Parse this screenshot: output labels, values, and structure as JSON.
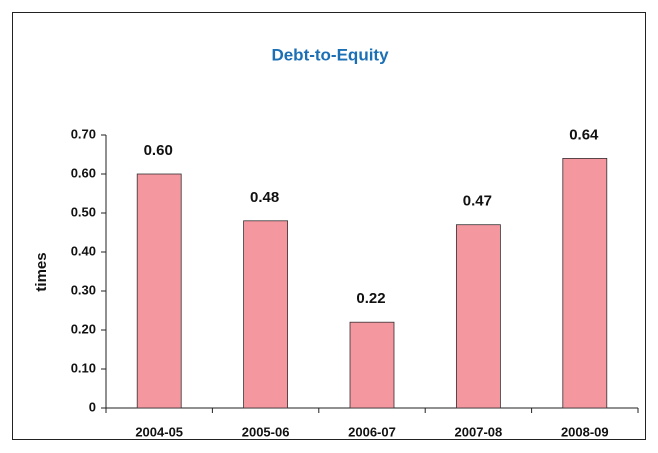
{
  "chart_data": {
    "type": "bar",
    "title": "Debt-to-Equity",
    "y_label": "times",
    "categories": [
      "2004-05",
      "2005-06",
      "2006-07",
      "2007-08",
      "2008-09"
    ],
    "values": [
      0.6,
      0.48,
      0.22,
      0.47,
      0.64
    ],
    "value_labels": [
      "0.60",
      "0.48",
      "0.22",
      "0.47",
      "0.64"
    ],
    "color": "#f4979f",
    "ylim": [
      0,
      0.7
    ],
    "yticks": [
      0,
      {
        "value": 0.1,
        "label": "0.10"
      },
      {
        "value": 0.2,
        "label": "0.20"
      },
      {
        "value": 0.3,
        "label": "0.30"
      },
      {
        "value": 0.4,
        "label": "0.40"
      },
      {
        "value": 0.5,
        "label": "0.50"
      },
      {
        "value": 0.6,
        "label": "0.60"
      },
      {
        "value": 0.7,
        "label": "0.70"
      }
    ],
    "grid": false
  }
}
